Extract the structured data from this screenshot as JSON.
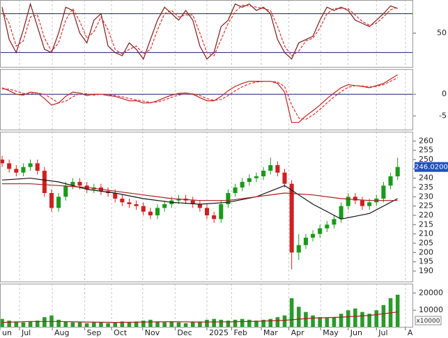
{
  "chart_data": [
    {
      "type": "line",
      "xlim": [
        -0.3,
        58.2
      ],
      "ylim": [
        0,
        100
      ],
      "yticks": [
        50
      ],
      "hlines": [
        20,
        80
      ],
      "hline_color": "#1a1a7a",
      "x": [
        0,
        1,
        2,
        3,
        4,
        5,
        6,
        7,
        8,
        9,
        10,
        11,
        12,
        13,
        14,
        15,
        16,
        17,
        18,
        19,
        20,
        21,
        22,
        23,
        24,
        25,
        26,
        27,
        28,
        29,
        30,
        31,
        32,
        33,
        34,
        35,
        36,
        37,
        38,
        39,
        40,
        41,
        42,
        43,
        44,
        45,
        46,
        47,
        48,
        49,
        50,
        51,
        52,
        53,
        54,
        55,
        56
      ],
      "series": [
        {
          "color": "#7a1a1a",
          "style": "solid",
          "values": [
            90,
            40,
            20,
            55,
            95,
            60,
            25,
            20,
            50,
            90,
            85,
            50,
            35,
            70,
            80,
            30,
            20,
            15,
            35,
            25,
            10,
            40,
            70,
            90,
            80,
            70,
            85,
            70,
            30,
            10,
            20,
            60,
            70,
            95,
            90,
            95,
            85,
            90,
            80,
            40,
            20,
            10,
            35,
            40,
            45,
            70,
            90,
            85,
            90,
            85,
            70,
            65,
            60,
            70,
            80,
            92,
            88
          ]
        },
        {
          "color": "#e03030",
          "style": "dashed",
          "values": [
            85,
            65,
            30,
            38,
            75,
            78,
            42,
            22,
            35,
            70,
            88,
            68,
            42,
            52,
            75,
            55,
            25,
            18,
            25,
            30,
            18,
            25,
            55,
            80,
            85,
            75,
            78,
            78,
            50,
            20,
            15,
            40,
            65,
            83,
            93,
            92,
            90,
            88,
            85,
            60,
            30,
            15,
            22,
            38,
            42,
            58,
            80,
            88,
            88,
            88,
            78,
            68,
            62,
            65,
            75,
            86,
            90
          ]
        }
      ]
    },
    {
      "type": "line",
      "xlim": [
        -0.3,
        58.2
      ],
      "ylim": [
        -8,
        5.5
      ],
      "yticks": [
        0,
        -5
      ],
      "hlines": [
        0
      ],
      "hline_color": "#1a1a7a",
      "x": [
        0,
        1,
        2,
        3,
        4,
        5,
        6,
        7,
        8,
        9,
        10,
        11,
        12,
        13,
        14,
        15,
        16,
        17,
        18,
        19,
        20,
        21,
        22,
        23,
        24,
        25,
        26,
        27,
        28,
        29,
        30,
        31,
        32,
        33,
        34,
        35,
        36,
        37,
        38,
        39,
        40,
        41,
        42,
        43,
        44,
        45,
        46,
        47,
        48,
        49,
        50,
        51,
        52,
        53,
        54,
        55,
        56
      ],
      "series": [
        {
          "color": "#c02020",
          "style": "solid",
          "values": [
            1.5,
            0.8,
            0,
            -0.2,
            0.5,
            0.3,
            -1,
            -2.5,
            -2,
            -0.5,
            0.5,
            0.3,
            -0.3,
            0,
            0,
            -0.3,
            -0.5,
            -1,
            -1.5,
            -1.5,
            -2,
            -2,
            -1.5,
            -0.8,
            -0.2,
            0.2,
            0.3,
            0,
            -0.8,
            -1.5,
            -1.5,
            -0.5,
            0.8,
            1.8,
            2.5,
            3,
            3,
            3,
            3,
            2.5,
            0.5,
            -6.5,
            -6.5,
            -5,
            -3.8,
            -2.5,
            -1,
            0.3,
            1.5,
            2.2,
            2,
            1.8,
            1.5,
            2,
            2.5,
            3.5,
            4.5
          ]
        },
        {
          "color": "#e03030",
          "style": "dashed",
          "values": [
            1.2,
            1.2,
            0.7,
            0.2,
            0.1,
            0.3,
            0,
            -1,
            -2,
            -1.6,
            -0.6,
            0.2,
            0.1,
            -0.2,
            0,
            -0.1,
            -0.3,
            -0.6,
            -1,
            -1.3,
            -1.6,
            -1.9,
            -1.8,
            -1.3,
            -0.7,
            -0.2,
            0.1,
            0.1,
            -0.3,
            -1,
            -1.4,
            -1.2,
            -0.3,
            0.8,
            1.7,
            2.4,
            2.8,
            3,
            3,
            2.8,
            1.8,
            -2.5,
            -5.5,
            -5.8,
            -4.8,
            -3.5,
            -2,
            -0.6,
            0.6,
            1.6,
            2,
            1.9,
            1.7,
            1.8,
            2.2,
            3,
            3.8
          ]
        }
      ]
    },
    {
      "type": "candlestick",
      "xlim": [
        -0.3,
        58.2
      ],
      "ylim": [
        184,
        265
      ],
      "yticks": [
        190,
        195,
        200,
        205,
        210,
        215,
        220,
        225,
        230,
        235,
        240,
        245,
        250,
        255,
        260
      ],
      "x": [
        0,
        1,
        2,
        3,
        4,
        5,
        6,
        7,
        8,
        9,
        10,
        11,
        12,
        13,
        14,
        15,
        16,
        17,
        18,
        19,
        20,
        21,
        22,
        23,
        24,
        25,
        26,
        27,
        28,
        29,
        30,
        31,
        32,
        33,
        34,
        35,
        36,
        37,
        38,
        39,
        40,
        41,
        42,
        43,
        44,
        45,
        46,
        47,
        48,
        49,
        50,
        51,
        52,
        53,
        54,
        55,
        56
      ],
      "up_color": "#1a9a1a",
      "down_color": "#d02020",
      "open": [
        250,
        248,
        245,
        243,
        246,
        248,
        244,
        232,
        224,
        230,
        236,
        238,
        236,
        234,
        235,
        233,
        232,
        229,
        227,
        226,
        225,
        222,
        220,
        224,
        226,
        228,
        229,
        228,
        226,
        224,
        220,
        218,
        226,
        232,
        235,
        238,
        240,
        241,
        244,
        247,
        243,
        237,
        200,
        204,
        208,
        210,
        213,
        215,
        218,
        225,
        230,
        228,
        225,
        227,
        229,
        236,
        241
      ],
      "high": [
        252,
        250,
        247,
        248,
        250,
        250,
        246,
        234,
        232,
        238,
        240,
        240,
        238,
        237,
        237,
        235,
        234,
        231,
        229,
        228,
        227,
        224,
        226,
        228,
        230,
        231,
        231,
        230,
        228,
        226,
        222,
        228,
        234,
        237,
        240,
        242,
        243,
        246,
        251,
        249,
        245,
        239,
        210,
        210,
        212,
        215,
        217,
        220,
        227,
        232,
        232,
        230,
        229,
        231,
        238,
        243,
        251
      ],
      "low": [
        246,
        243,
        241,
        241,
        244,
        242,
        230,
        222,
        222,
        228,
        234,
        234,
        232,
        232,
        231,
        230,
        227,
        225,
        224,
        223,
        220,
        218,
        218,
        222,
        224,
        226,
        226,
        224,
        222,
        218,
        216,
        216,
        224,
        230,
        233,
        236,
        238,
        239,
        242,
        241,
        235,
        191,
        196,
        202,
        206,
        208,
        211,
        213,
        216,
        223,
        226,
        223,
        223,
        225,
        227,
        234,
        239
      ],
      "close": [
        248,
        245,
        243,
        246,
        248,
        244,
        232,
        224,
        230,
        236,
        238,
        236,
        234,
        235,
        233,
        232,
        229,
        227,
        226,
        225,
        222,
        220,
        224,
        226,
        228,
        229,
        228,
        226,
        224,
        220,
        218,
        226,
        232,
        235,
        238,
        240,
        241,
        244,
        247,
        243,
        237,
        200,
        204,
        208,
        210,
        213,
        215,
        218,
        225,
        230,
        228,
        225,
        227,
        229,
        236,
        241,
        246.02
      ],
      "last_price": {
        "value": 246.02,
        "label": "246.0200"
      },
      "last_price_color": "#1f4fbf",
      "lines": [
        {
          "color": "#111111",
          "x": [
            0,
            4,
            8,
            12,
            16,
            20,
            24,
            28,
            32,
            36,
            40,
            44,
            48,
            52,
            56
          ],
          "values": [
            239,
            240,
            238,
            234,
            232,
            229,
            227,
            226,
            227,
            230,
            236,
            226,
            218,
            221,
            229
          ]
        },
        {
          "color": "#b01818",
          "x": [
            0,
            4,
            8,
            12,
            16,
            20,
            24,
            28,
            32,
            36,
            40,
            44,
            48,
            52,
            56
          ],
          "values": [
            237,
            237,
            236,
            235,
            233,
            231,
            229,
            228,
            228,
            230,
            232,
            231,
            229,
            228,
            228
          ]
        }
      ]
    },
    {
      "type": "bar",
      "xlim": [
        -0.3,
        58.2
      ],
      "ylim": [
        0,
        25000
      ],
      "yticks": [
        20000,
        10000
      ],
      "unit_label": "x10000",
      "color": "#2a9a2a",
      "x": [
        0,
        1,
        2,
        3,
        4,
        5,
        6,
        7,
        8,
        9,
        10,
        11,
        12,
        13,
        14,
        15,
        16,
        17,
        18,
        19,
        20,
        21,
        22,
        23,
        24,
        25,
        26,
        27,
        28,
        29,
        30,
        31,
        32,
        33,
        34,
        35,
        36,
        37,
        38,
        39,
        40,
        41,
        42,
        43,
        44,
        45,
        46,
        47,
        48,
        49,
        50,
        51,
        52,
        53,
        54,
        55,
        56
      ],
      "values": [
        5000,
        4000,
        3500,
        3000,
        3500,
        4000,
        6000,
        7000,
        4500,
        3500,
        3000,
        3000,
        2500,
        3000,
        3000,
        2500,
        3000,
        3500,
        3000,
        3500,
        4000,
        4500,
        3500,
        3000,
        3500,
        3000,
        2500,
        3500,
        3500,
        4500,
        5000,
        4500,
        4000,
        4500,
        5000,
        4500,
        4000,
        4500,
        5000,
        6000,
        7000,
        17000,
        12000,
        9000,
        7000,
        6000,
        5500,
        6000,
        8000,
        10000,
        11000,
        9000,
        8000,
        10000,
        13000,
        17000,
        19000
      ],
      "ma": {
        "color": "#b01818",
        "x": [
          0,
          4,
          8,
          12,
          16,
          20,
          24,
          28,
          32,
          36,
          40,
          44,
          48,
          52,
          56
        ],
        "values": [
          3000,
          3500,
          3500,
          3200,
          3000,
          3200,
          3400,
          3200,
          3300,
          3600,
          4200,
          5500,
          6000,
          7000,
          9000
        ]
      },
      "grid": true,
      "xticks": [
        {
          "value": -0.3,
          "label": "un"
        },
        {
          "value": 2.46,
          "label": "Jul"
        },
        {
          "value": 7.1,
          "label": "Aug"
        },
        {
          "value": 11.7,
          "label": "Sep"
        },
        {
          "value": 15.5,
          "label": "Oct"
        },
        {
          "value": 19.9,
          "label": "Nov"
        },
        {
          "value": 24.5,
          "label": "Dec"
        },
        {
          "value": 29.0,
          "label": "2025"
        },
        {
          "value": 32.5,
          "label": "Feb"
        },
        {
          "value": 36.7,
          "label": "Mar"
        },
        {
          "value": 40.6,
          "label": "Apr"
        },
        {
          "value": 45.1,
          "label": "May"
        },
        {
          "value": 49.0,
          "label": "Jun"
        },
        {
          "value": 53.0,
          "label": "Jul"
        },
        {
          "value": 57.1,
          "label": "A"
        }
      ]
    }
  ]
}
